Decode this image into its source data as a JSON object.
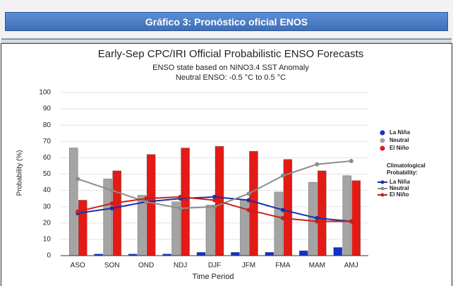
{
  "header": {
    "title": "Gráfico 3: Pronóstico oficial ENOS"
  },
  "chart_data": {
    "type": "bar",
    "title": "Early-Sep CPC/IRI Official Probabilistic ENSO Forecasts",
    "subtitle": [
      "ENSO state based on NINO3.4 SST Anomaly",
      "Neutral ENSO: -0.5 °C to 0.5 °C"
    ],
    "y_label": "Probability (%)",
    "x_label": "Time Period",
    "categories": [
      "ASO",
      "SON",
      "OND",
      "NDJ",
      "DJF",
      "JFM",
      "FMA",
      "MAM",
      "AMJ"
    ],
    "series": [
      {
        "name": "La Niña",
        "color": "#1030c8",
        "values": [
          0,
          1,
          1,
          1,
          2,
          2,
          2,
          3,
          5
        ]
      },
      {
        "name": "Neutral",
        "color": "#a4a4a4",
        "values": [
          66,
          47,
          37,
          33,
          31,
          34,
          39,
          45,
          49
        ]
      },
      {
        "name": "El Niño",
        "color": "#e41a14",
        "values": [
          34,
          52,
          62,
          66,
          67,
          64,
          59,
          52,
          46
        ]
      }
    ],
    "line_legend_title": "Climatological Probability:",
    "line_series": [
      {
        "name": "La Niña",
        "color": "#1a2fa8",
        "values": [
          26,
          29,
          33,
          35,
          36,
          34,
          28,
          23,
          21
        ]
      },
      {
        "name": "Neutral",
        "color": "#8c8c8c",
        "values": [
          47,
          40,
          33,
          29,
          30,
          38,
          49,
          56,
          58
        ]
      },
      {
        "name": "El Niño",
        "color": "#c8201c",
        "values": [
          27,
          32,
          35,
          36,
          34,
          28,
          23,
          21,
          21
        ]
      }
    ],
    "ylim": [
      0,
      100
    ],
    "yticks": [
      0,
      10,
      20,
      30,
      40,
      50,
      60,
      70,
      80,
      90,
      100
    ],
    "grid": true
  }
}
